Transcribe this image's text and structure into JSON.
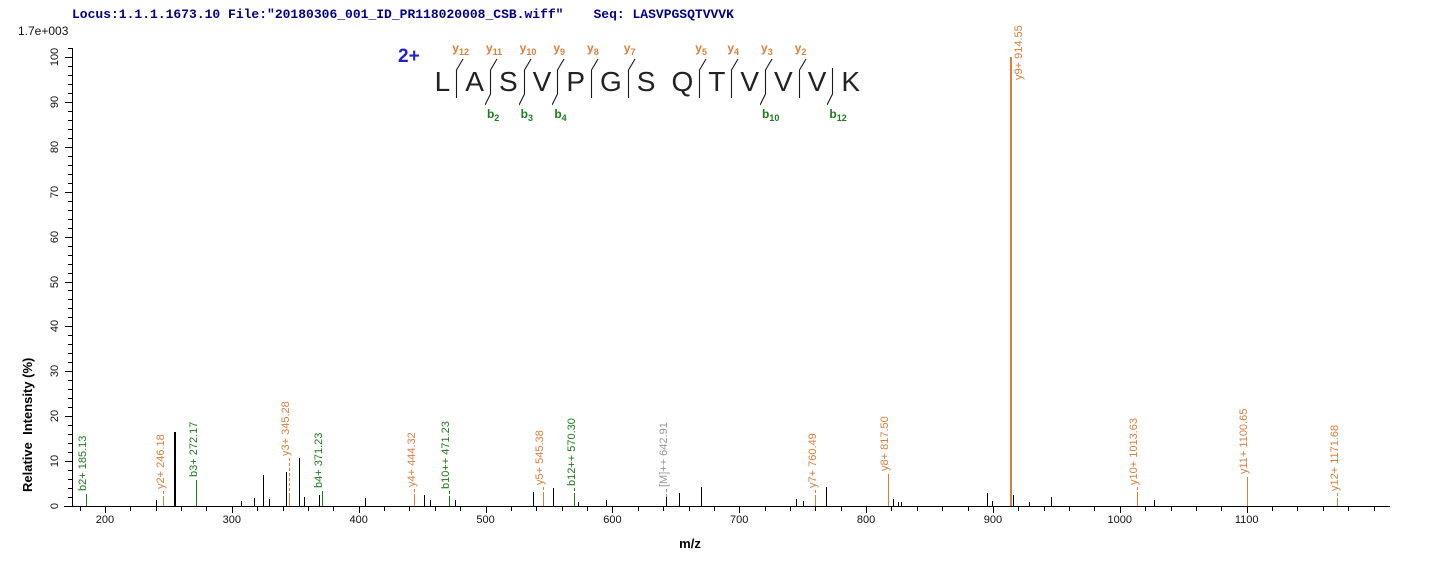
{
  "header": {
    "locus_file": "Locus:1.1.1.1673.10 File:\"20180306_001_ID_PR118020008_CSB.wiff\"",
    "seq": "Seq: LASVPGSQTVVVK",
    "scale_label": "1.7e+003"
  },
  "peptide": {
    "charge_label": "2+",
    "sequence": "LASVPGSQTVVVK",
    "items": [
      {
        "type": "res",
        "ch": "L"
      },
      {
        "type": "cut",
        "y": "y12",
        "b": null
      },
      {
        "type": "res",
        "ch": "A"
      },
      {
        "type": "cut",
        "y": "y11",
        "b": "b2"
      },
      {
        "type": "res",
        "ch": "S"
      },
      {
        "type": "cut",
        "y": "y10",
        "b": "b3"
      },
      {
        "type": "res",
        "ch": "V"
      },
      {
        "type": "cut",
        "y": "y9",
        "b": "b4"
      },
      {
        "type": "res",
        "ch": "P"
      },
      {
        "type": "cut",
        "y": "y8",
        "b": null
      },
      {
        "type": "res",
        "ch": "G"
      },
      {
        "type": "cut",
        "y": "y7",
        "b": null
      },
      {
        "type": "res",
        "ch": "S"
      },
      {
        "type": "gap"
      },
      {
        "type": "res",
        "ch": "Q"
      },
      {
        "type": "cut",
        "y": "y5",
        "b": null
      },
      {
        "type": "res",
        "ch": "T"
      },
      {
        "type": "cut",
        "y": "y4",
        "b": null
      },
      {
        "type": "res",
        "ch": "V"
      },
      {
        "type": "cut",
        "y": "y3",
        "b": "b10"
      },
      {
        "type": "res",
        "ch": "V"
      },
      {
        "type": "cut",
        "y": "y2",
        "b": null
      },
      {
        "type": "res",
        "ch": "V"
      },
      {
        "type": "cut",
        "y": null,
        "b": "b12"
      },
      {
        "type": "res",
        "ch": "K"
      }
    ]
  },
  "axes": {
    "xlabel": "m/z",
    "ylabel": "Relative  Intensity (%)",
    "x": {
      "min": 174,
      "max": 1213,
      "minor_step": 20,
      "major_step": 100,
      "label_from": 200,
      "label_to": 1100
    },
    "y": {
      "min": 0,
      "max": 100,
      "minor_step": 2,
      "major_step": 10
    }
  },
  "colors": {
    "y_ion": "#DD7E3B",
    "b_ion": "#1E7B1E",
    "precursor_label": "#999999",
    "peak": "#000000",
    "header": "#00008B",
    "charge": "#2222CC"
  },
  "chart_data": {
    "type": "bar",
    "xlabel": "m/z",
    "ylabel": "Relative  Intensity (%)",
    "xlim": [
      174,
      1213
    ],
    "ylim": [
      0,
      100
    ],
    "intensity_full_scale": "1.7e+003",
    "labeled_peaks": [
      {
        "mz": 185.13,
        "intensity": 2.6,
        "label": "b2+ 185.13",
        "series": "b",
        "dash": false
      },
      {
        "mz": 246.18,
        "intensity": 1.5,
        "label": "y2+ 246.18",
        "series": "y",
        "dash": true
      },
      {
        "mz": 272.17,
        "intensity": 5.7,
        "label": "b3+ 272.17",
        "series": "b",
        "dash": false
      },
      {
        "mz": 345.28,
        "intensity": 2.2,
        "label": "y3+ 345.28",
        "series": "y",
        "dash": true,
        "label_bottom": 456
      },
      {
        "mz": 371.23,
        "intensity": 3.3,
        "label": "b4+ 371.23",
        "series": "b",
        "dash": false
      },
      {
        "mz": 444.32,
        "intensity": 2.0,
        "label": "y4+ 444.32",
        "series": "y",
        "dash": true
      },
      {
        "mz": 471.23,
        "intensity": 1.6,
        "label": "b10++ 471.23",
        "series": "b",
        "dash": true
      },
      {
        "mz": 545.38,
        "intensity": 2.5,
        "label": "y5+ 545.38",
        "series": "y",
        "dash": true
      },
      {
        "mz": 570.3,
        "intensity": 2.2,
        "label": "b12++ 570.30",
        "series": "b",
        "dash": true
      },
      {
        "mz": 642.91,
        "intensity": 2.1,
        "label": "[M]++ 642.91",
        "series": "precursor",
        "dash": true
      },
      {
        "mz": 760.49,
        "intensity": 1.7,
        "label": "y7+ 760.49",
        "series": "y",
        "dash": true
      },
      {
        "mz": 817.5,
        "intensity": 7.2,
        "label": "y8+ 817.50",
        "series": "y",
        "dash": false
      },
      {
        "mz": 914.55,
        "intensity": 100,
        "label": "y9+ 914.55",
        "series": "y",
        "dash": false,
        "width": 2,
        "label_side": "right",
        "label_bottom": 80
      },
      {
        "mz": 1013.63,
        "intensity": 2.4,
        "label": "y10+ 1013.63",
        "series": "y",
        "dash": true
      },
      {
        "mz": 1100.65,
        "intensity": 6.5,
        "label": "y11+ 1100.65",
        "series": "y",
        "dash": false
      },
      {
        "mz": 1171.68,
        "intensity": 1.2,
        "label": "y12+ 1171.68",
        "series": "y",
        "dash": true
      }
    ],
    "unassigned_peaks": [
      [
        241,
        1.3
      ],
      [
        255,
        16.5,
        2
      ],
      [
        308,
        1.2
      ],
      [
        318,
        1.8
      ],
      [
        325,
        6.8
      ],
      [
        330,
        1.5
      ],
      [
        343,
        7.6
      ],
      [
        353.5,
        10.8
      ],
      [
        357,
        2.0
      ],
      [
        369,
        2.5
      ],
      [
        405,
        1.8
      ],
      [
        452,
        2.4
      ],
      [
        456.5,
        1.3
      ],
      [
        476.5,
        1.3
      ],
      [
        537.5,
        3.2
      ],
      [
        553.3,
        3.9
      ],
      [
        573,
        1.0
      ],
      [
        595,
        1.3
      ],
      [
        653,
        2.8
      ],
      [
        670.3,
        4.3
      ],
      [
        745,
        1.5
      ],
      [
        750.5,
        1.2
      ],
      [
        768.8,
        4.3
      ],
      [
        821.4,
        1.5
      ],
      [
        825.4,
        1.0
      ],
      [
        828,
        0.8
      ],
      [
        896,
        3.0
      ],
      [
        900,
        1.2
      ],
      [
        916.5,
        2.4
      ],
      [
        929,
        1.0
      ],
      [
        946,
        1.9
      ],
      [
        1027,
        1.3
      ]
    ]
  }
}
